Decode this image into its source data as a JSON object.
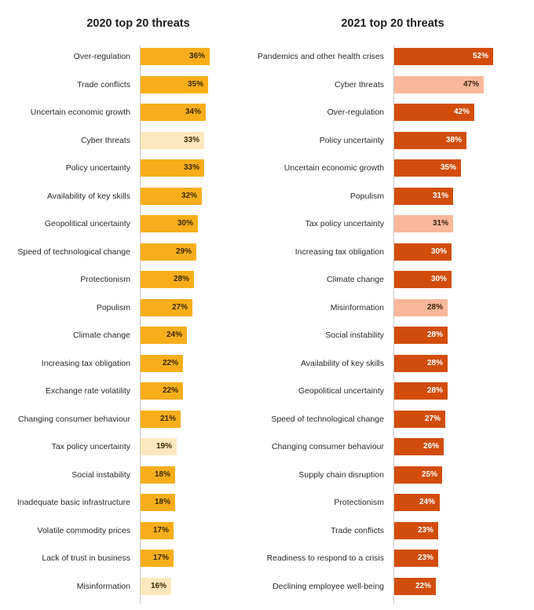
{
  "colors": {
    "left_main": "#f8ae1a",
    "left_highlight": "#fde8bd",
    "right_main": "#d24d0c",
    "right_highlight": "#fab79a",
    "value_dark": "#3a2a00",
    "value_light": "#ffffff",
    "value_on_highlight": "#3b2410"
  },
  "chart_data": [
    {
      "type": "bar",
      "orientation": "horizontal",
      "title": "2020 top 20 threats",
      "unit": "%",
      "xlim": [
        0,
        52
      ],
      "categories": [
        "Over-regulation",
        "Trade conflicts",
        "Uncertain economic growth",
        "Cyber threats",
        "Policy uncertainty",
        "Availability of key skills",
        "Geopolitical uncertainty",
        "Speed of technological change",
        "Protectionism",
        "Populism",
        "Climate change",
        "Increasing tax obligation",
        "Exchange rate volatility",
        "Changing consumer behaviour",
        "Tax policy uncertainty",
        "Social instability",
        "Inadequate basic infrastructure",
        "Volatile commodity prices",
        "Lack of trust in business",
        "Misinformation"
      ],
      "values": [
        36,
        35,
        34,
        33,
        33,
        32,
        30,
        29,
        28,
        27,
        24,
        22,
        22,
        21,
        19,
        18,
        18,
        17,
        17,
        16
      ],
      "value_labels": [
        "36%",
        "35%",
        "34%",
        "33%",
        "33%",
        "32%",
        "30%",
        "29%",
        "28%",
        "27%",
        "24%",
        "22%",
        "22%",
        "21%",
        "19%",
        "18%",
        "18%",
        "17%",
        "17%",
        "16%"
      ],
      "highlighted": [
        "Cyber threats",
        "Tax policy uncertainty",
        "Misinformation"
      ]
    },
    {
      "type": "bar",
      "orientation": "horizontal",
      "title": "2021 top 20 threats",
      "unit": "%",
      "xlim": [
        0,
        52
      ],
      "categories": [
        "Pandemics and other health crises",
        "Cyber threats",
        "Over-regulation",
        "Policy uncertainty",
        "Uncertain economic growth",
        "Populism",
        "Tax policy uncertainty",
        "Increasing tax obligation",
        "Climate change",
        "Misinformation",
        "Social instability",
        "Availability of key skills",
        "Geopolitical uncertainty",
        "Speed of technological change",
        "Changing consumer behaviour",
        "Supply chain disruption",
        "Protectionism",
        "Trade conflicts",
        "Readiness to respond to a crisis",
        "Declining employee well-being"
      ],
      "values": [
        52,
        47,
        42,
        38,
        35,
        31,
        31,
        30,
        30,
        28,
        28,
        28,
        28,
        27,
        26,
        25,
        24,
        23,
        23,
        22
      ],
      "value_labels": [
        "52%",
        "47%",
        "42%",
        "38%",
        "35%",
        "31%",
        "31%",
        "30%",
        "30%",
        "28%",
        "28%",
        "28%",
        "28%",
        "27%",
        "26%",
        "25%",
        "24%",
        "23%",
        "23%",
        "22%"
      ],
      "highlighted": [
        "Cyber threats",
        "Tax policy uncertainty",
        "Misinformation"
      ]
    }
  ]
}
